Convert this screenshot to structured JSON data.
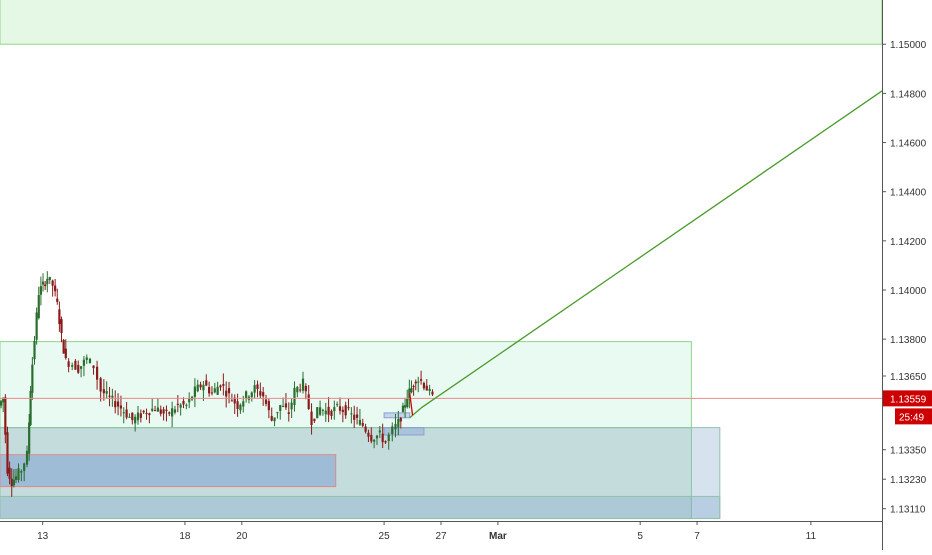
{
  "chart_data": {
    "type": "candlestick",
    "symbol_price": "1.13559",
    "countdown": "25:49",
    "price_scale": [
      {
        "label": "1.15000",
        "value": 1.15
      },
      {
        "label": "1.14800",
        "value": 1.148
      },
      {
        "label": "1.14600",
        "value": 1.146
      },
      {
        "label": "1.14400",
        "value": 1.144
      },
      {
        "label": "1.14200",
        "value": 1.142
      },
      {
        "label": "1.14000",
        "value": 1.14
      },
      {
        "label": "1.13800",
        "value": 1.138
      },
      {
        "label": "1.13650",
        "value": 1.1365
      },
      {
        "label": "1.13350",
        "value": 1.1335
      },
      {
        "label": "1.13230",
        "value": 1.1323
      },
      {
        "label": "1.13110",
        "value": 1.1311
      }
    ],
    "time_scale": [
      {
        "label": "13",
        "day": 13
      },
      {
        "label": "18",
        "day": 18
      },
      {
        "label": "20",
        "day": 20
      },
      {
        "label": "25",
        "day": 25
      },
      {
        "label": "27",
        "day": 27
      },
      {
        "label": "Mar",
        "day": 29
      },
      {
        "label": "5",
        "day": 34
      },
      {
        "label": "7",
        "day": 36
      },
      {
        "label": "11",
        "day": 40
      }
    ],
    "x_range_days": [
      11.5,
      42.5
    ],
    "y_range": [
      1.1306,
      1.1518
    ],
    "zones": [
      {
        "kind": "green",
        "from_day": 11.5,
        "to_day": 42.5,
        "low": 1.15,
        "high": 1.1522
      },
      {
        "kind": "green-light",
        "from_day": 11.5,
        "to_day": 35.8,
        "low": 1.1344,
        "high": 1.1379
      },
      {
        "kind": "green",
        "from_day": 11.5,
        "to_day": 35.8,
        "low": 1.1307,
        "high": 1.1344
      },
      {
        "kind": "blue",
        "from_day": 11.5,
        "to_day": 36.8,
        "low": 1.1307,
        "high": 1.1344
      },
      {
        "kind": "blue-deep",
        "from_day": 11.5,
        "to_day": 23.3,
        "low": 1.132,
        "high": 1.1333
      },
      {
        "kind": "blue",
        "from_day": 11.5,
        "to_day": 36.8,
        "low": 1.1307,
        "high": 1.1316
      },
      {
        "kind": "blue-small",
        "from_day": 25.0,
        "to_day": 26.4,
        "low": 1.1341,
        "high": 1.1344
      },
      {
        "kind": "blue-small",
        "from_day": 25.0,
        "to_day": 25.9,
        "low": 1.1348,
        "high": 1.135
      }
    ],
    "current_price": 1.13559,
    "projection": [
      {
        "day": 25.9,
        "price": 1.1348
      },
      {
        "day": 26.3,
        "price": 1.1352
      },
      {
        "day": 42.5,
        "price": 1.1481
      }
    ],
    "short_move": [
      {
        "day": 25.9,
        "price": 1.1358
      },
      {
        "day": 26.0,
        "price": 1.1349
      }
    ],
    "price_path": [
      {
        "day": 11.5,
        "price": 1.1353
      },
      {
        "day": 11.65,
        "price": 1.1356
      },
      {
        "day": 11.8,
        "price": 1.1327
      },
      {
        "day": 11.95,
        "price": 1.1322
      },
      {
        "day": 12.1,
        "price": 1.1324
      },
      {
        "day": 12.3,
        "price": 1.1327
      },
      {
        "day": 12.5,
        "price": 1.1333
      },
      {
        "day": 12.6,
        "price": 1.136
      },
      {
        "day": 12.75,
        "price": 1.138
      },
      {
        "day": 12.9,
        "price": 1.1399
      },
      {
        "day": 13.05,
        "price": 1.1402
      },
      {
        "day": 13.2,
        "price": 1.1405
      },
      {
        "day": 13.4,
        "price": 1.1402
      },
      {
        "day": 13.55,
        "price": 1.1394
      },
      {
        "day": 13.7,
        "price": 1.1381
      },
      {
        "day": 13.85,
        "price": 1.1371
      },
      {
        "day": 14.1,
        "price": 1.137
      },
      {
        "day": 14.3,
        "price": 1.1368
      },
      {
        "day": 14.6,
        "price": 1.1372
      },
      {
        "day": 14.85,
        "price": 1.1369
      },
      {
        "day": 15.1,
        "price": 1.1359
      },
      {
        "day": 15.4,
        "price": 1.1356
      },
      {
        "day": 15.8,
        "price": 1.1352
      },
      {
        "day": 16.2,
        "price": 1.1347
      },
      {
        "day": 16.6,
        "price": 1.135
      },
      {
        "day": 17.0,
        "price": 1.1352
      },
      {
        "day": 17.4,
        "price": 1.1349
      },
      {
        "day": 17.8,
        "price": 1.1353
      },
      {
        "day": 18.1,
        "price": 1.1353
      },
      {
        "day": 18.4,
        "price": 1.1359
      },
      {
        "day": 18.7,
        "price": 1.1362
      },
      {
        "day": 19.0,
        "price": 1.1358
      },
      {
        "day": 19.3,
        "price": 1.1362
      },
      {
        "day": 19.6,
        "price": 1.1357
      },
      {
        "day": 19.9,
        "price": 1.1353
      },
      {
        "day": 20.2,
        "price": 1.1357
      },
      {
        "day": 20.5,
        "price": 1.136
      },
      {
        "day": 20.8,
        "price": 1.1357
      },
      {
        "day": 21.1,
        "price": 1.1347
      },
      {
        "day": 21.4,
        "price": 1.1353
      },
      {
        "day": 21.7,
        "price": 1.135
      },
      {
        "day": 21.9,
        "price": 1.1359
      },
      {
        "day": 22.2,
        "price": 1.1362
      },
      {
        "day": 22.5,
        "price": 1.1347
      },
      {
        "day": 22.8,
        "price": 1.1352
      },
      {
        "day": 23.1,
        "price": 1.135
      },
      {
        "day": 23.4,
        "price": 1.1352
      },
      {
        "day": 23.7,
        "price": 1.1351
      },
      {
        "day": 24.0,
        "price": 1.1348
      },
      {
        "day": 24.3,
        "price": 1.1345
      },
      {
        "day": 24.6,
        "price": 1.134
      },
      {
        "day": 24.9,
        "price": 1.1341
      },
      {
        "day": 25.1,
        "price": 1.1338
      },
      {
        "day": 25.35,
        "price": 1.1343
      },
      {
        "day": 25.55,
        "price": 1.1346
      },
      {
        "day": 25.7,
        "price": 1.1351
      },
      {
        "day": 25.85,
        "price": 1.1357
      },
      {
        "day": 26.0,
        "price": 1.136
      },
      {
        "day": 26.15,
        "price": 1.1364
      },
      {
        "day": 26.35,
        "price": 1.1363
      },
      {
        "day": 26.55,
        "price": 1.136
      },
      {
        "day": 26.75,
        "price": 1.1356
      }
    ]
  },
  "colors": {
    "up": "#2a6e2f",
    "down": "#8b1a1a",
    "green_zone": "rgba(170,230,170,0.30)",
    "green_line": "#8fd68f",
    "blue_zone": "rgba(120,160,200,0.30)",
    "blue_line": "#a9bbd6",
    "price_red": "#cc0000",
    "projection_green": "#4a9a2a"
  }
}
